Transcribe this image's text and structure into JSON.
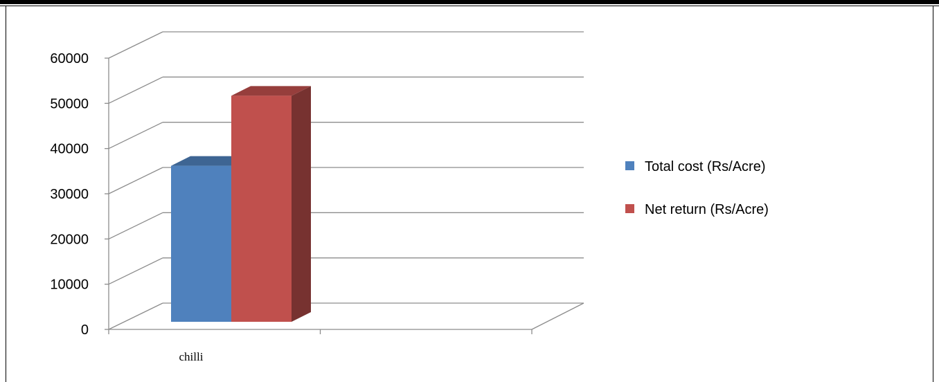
{
  "chart_data": {
    "type": "bar",
    "style": "3d-clustered-column",
    "categories": [
      "chilli",
      ""
    ],
    "series": [
      {
        "name": "Total cost (Rs/Acre)",
        "color": "#4F81BD",
        "values": [
          34500,
          null
        ]
      },
      {
        "name": "Net return (Rs/Acre)",
        "color": "#C0504D",
        "values": [
          50000,
          null
        ]
      }
    ],
    "y_ticks": [
      "0",
      "10000",
      "20000",
      "30000",
      "40000",
      "50000",
      "60000"
    ],
    "ylim": [
      0,
      60000
    ],
    "grid": true,
    "legend_position": "right"
  }
}
